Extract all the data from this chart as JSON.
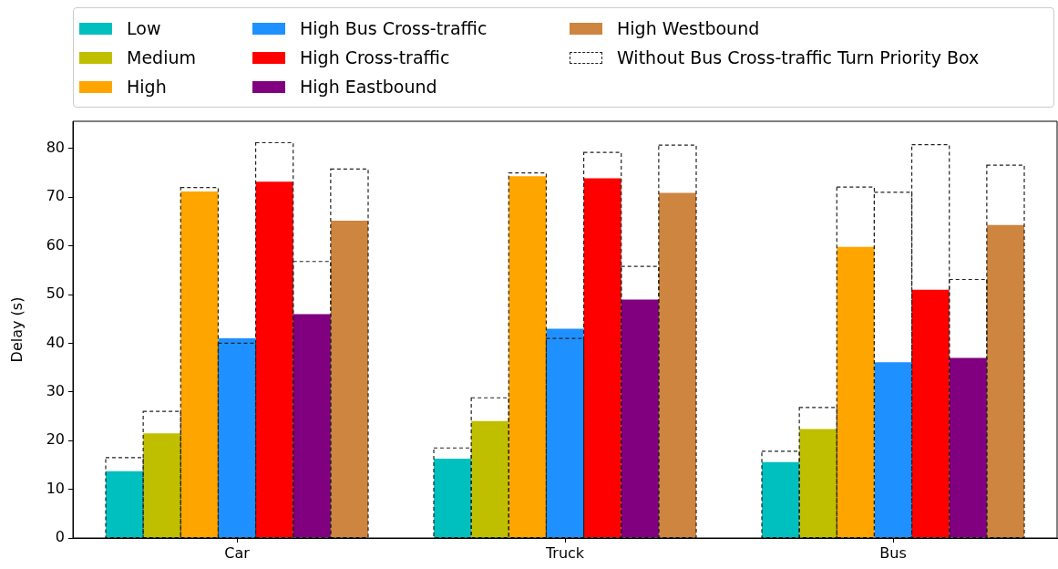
{
  "chart_data": {
    "type": "bar",
    "categories": [
      "Car",
      "Truck",
      "Bus"
    ],
    "ylabel": "Delay (s)",
    "ylim": [
      0,
      85.6
    ],
    "yticks": [
      0,
      10,
      20,
      30,
      40,
      50,
      60,
      70,
      80
    ],
    "grid": false,
    "legend": "top",
    "series": [
      {
        "name": "Low",
        "color": "#00bfbf",
        "values": [
          13.7,
          16.3,
          15.6
        ]
      },
      {
        "name": "Medium",
        "color": "#bfbf00",
        "values": [
          21.5,
          24,
          22.4
        ]
      },
      {
        "name": "High",
        "color": "#ffa500",
        "values": [
          71.2,
          74.3,
          59.8
        ]
      },
      {
        "name": "High Bus Cross-traffic",
        "color": "#1e90ff",
        "values": [
          41,
          43,
          36.1
        ]
      },
      {
        "name": "High Cross-traffic",
        "color": "#ff0000",
        "values": [
          73.2,
          73.9,
          51
        ]
      },
      {
        "name": "High Eastbound",
        "color": "#800080",
        "values": [
          46,
          49,
          37
        ]
      },
      {
        "name": "High Westbound",
        "color": "#cd853f",
        "values": [
          65.2,
          70.9,
          64.3
        ]
      },
      {
        "name": "Without Bus Cross-traffic Turn Priority Box",
        "color": "#222222",
        "line_style": "dashed",
        "values": [
          16.5,
          18.5,
          17.8
        ]
      },
      {
        "color": "#222222",
        "line_style": "dashed",
        "values": [
          26,
          28.8,
          26.8
        ]
      },
      {
        "color": "#222222",
        "line_style": "dashed",
        "values": [
          72,
          75,
          72.1
        ]
      },
      {
        "color": "#222222",
        "line_style": "dashed",
        "values": [
          40,
          41,
          71
        ]
      },
      {
        "color": "#222222",
        "line_style": "dashed",
        "values": [
          81.2,
          79.2,
          80.8
        ]
      },
      {
        "color": "#222222",
        "line_style": "dashed",
        "values": [
          56.8,
          55.8,
          53.1
        ]
      },
      {
        "color": "#222222",
        "line_style": "dashed",
        "values": [
          75.8,
          80.7,
          76.6
        ]
      }
    ]
  }
}
